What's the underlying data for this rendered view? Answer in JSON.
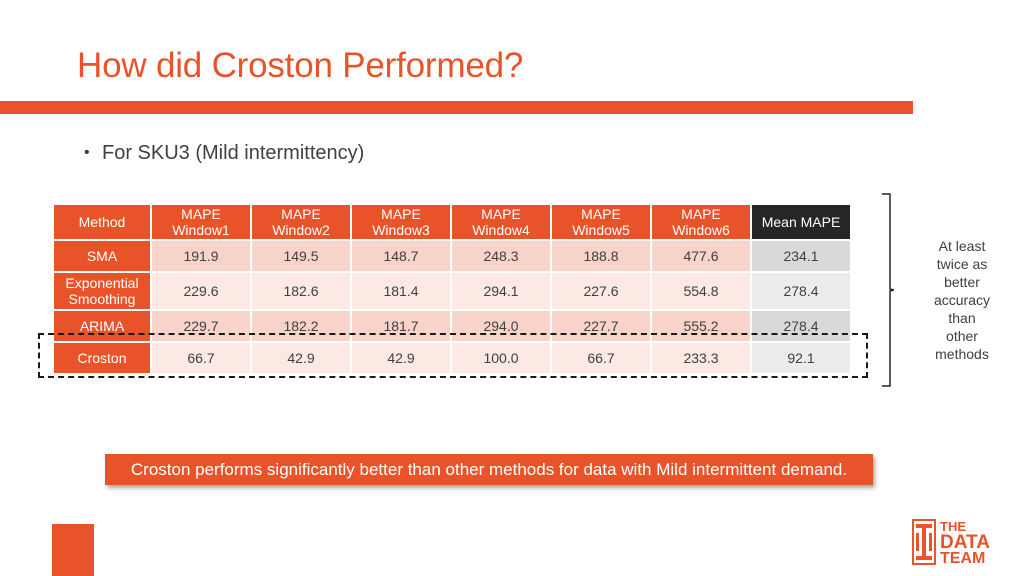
{
  "title": "How did Croston Performed?",
  "bullet": "For SKU3 (Mild intermittency)",
  "table": {
    "method_header": "Method",
    "window_headers": [
      [
        "MAPE",
        "Window1"
      ],
      [
        "MAPE",
        "Window2"
      ],
      [
        "MAPE",
        "Window3"
      ],
      [
        "MAPE",
        "Window4"
      ],
      [
        "MAPE",
        "Window5"
      ],
      [
        "MAPE",
        "Window6"
      ]
    ],
    "mean_header": "Mean MAPE",
    "rows": [
      {
        "method": [
          "SMA"
        ],
        "values": [
          "191.9",
          "149.5",
          "148.7",
          "248.3",
          "188.8",
          "477.6"
        ],
        "mean": "234.1"
      },
      {
        "method": [
          "Exponential",
          "Smoothing"
        ],
        "values": [
          "229.6",
          "182.6",
          "181.4",
          "294.1",
          "227.6",
          "554.8"
        ],
        "mean": "278.4"
      },
      {
        "method": [
          "ARIMA"
        ],
        "values": [
          "229.7",
          "182.2",
          "181.7",
          "294.0",
          "227.7",
          "555.2"
        ],
        "mean": "278.4"
      },
      {
        "method": [
          "Croston"
        ],
        "values": [
          "66.7",
          "42.9",
          "42.9",
          "100.0",
          "66.7",
          "233.3"
        ],
        "mean": "92.1"
      }
    ]
  },
  "side_note": [
    "At least",
    "twice as",
    "better",
    "accuracy",
    "than",
    "other",
    "methods"
  ],
  "callout": "Croston performs significantly better than other methods for data with Mild intermittent demand.",
  "logo": {
    "words": [
      "THE",
      "DATA",
      "TEAM"
    ],
    "icon": "data-team-logo-icon"
  },
  "colors": {
    "accent": "#e8532a",
    "dark": "#262626"
  }
}
